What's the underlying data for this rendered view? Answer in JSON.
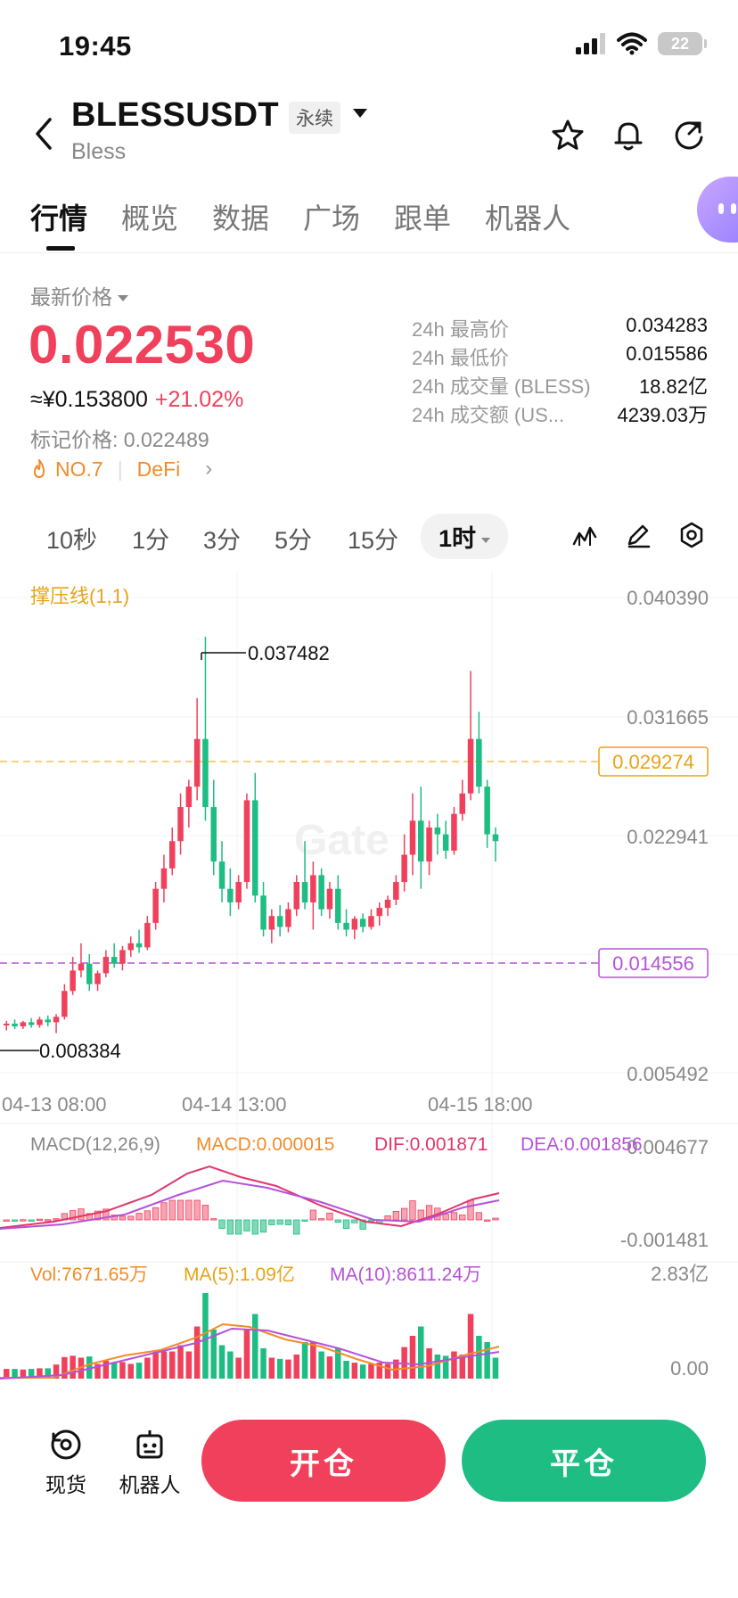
{
  "status": {
    "time": "19:45",
    "battery": "22"
  },
  "header": {
    "symbol": "BLESSUSDT",
    "contract_tag": "永续",
    "name": "Bless"
  },
  "tabs": [
    "行情",
    "概览",
    "数据",
    "广场",
    "跟单",
    "机器人"
  ],
  "price": {
    "label": "最新价格",
    "last": "0.022530",
    "cny": "≈¥0.153800",
    "change": "+21.02%",
    "mark": "标记价格: 0.022489",
    "rank": "NO.7",
    "category": "DeFi"
  },
  "stats": [
    {
      "k": "24h 最高价",
      "v": "0.034283"
    },
    {
      "k": "24h 最低价",
      "v": "0.015586"
    },
    {
      "k": "24h 成交量 (BLESS)",
      "v": "18.82亿"
    },
    {
      "k": "24h 成交额 (US...",
      "v": "4239.03万"
    }
  ],
  "intervals": [
    "10秒",
    "1分",
    "3分",
    "5分",
    "15分"
  ],
  "interval_active": "1时",
  "chart": {
    "indicator_label": "撑压线(1,1)",
    "y_labels": [
      "0.040390",
      "0.031665",
      "0.022941",
      "0.005492"
    ],
    "resistance": "0.029274",
    "support": "0.014556",
    "high_label": "0.037482",
    "low_label": "0.008384",
    "x_labels": [
      "04-13 08:00",
      "04-14 13:00",
      "04-15 18:00"
    ],
    "watermark": "Gate",
    "macd_params": "MACD(12,26,9)",
    "macd_value": "MACD:0.000015",
    "dif_value": "DIF:0.001871",
    "dea_value": "DEA:0.001856",
    "macd_top": "0.004677",
    "macd_bottom": "-0.001481",
    "vol_value": "Vol:7671.65万",
    "ma5_value": "MA(5):1.09亿",
    "ma10_value": "MA(10):8611.24万",
    "vol_top": "2.83亿",
    "vol_bottom": "0.00"
  },
  "chart_data": {
    "type": "candlestick",
    "x_labels": [
      "04-13 08:00",
      "04-14 13:00",
      "04-15 18:00"
    ],
    "ylim": [
      0.005492,
      0.04039
    ],
    "series": [
      {
        "o": 0.009,
        "h": 0.0093,
        "l": 0.0086,
        "c": 0.0091
      },
      {
        "o": 0.0091,
        "h": 0.0094,
        "l": 0.0087,
        "c": 0.0089
      },
      {
        "o": 0.0089,
        "h": 0.0093,
        "l": 0.0087,
        "c": 0.0092
      },
      {
        "o": 0.0092,
        "h": 0.0095,
        "l": 0.0088,
        "c": 0.009
      },
      {
        "o": 0.009,
        "h": 0.0096,
        "l": 0.0088,
        "c": 0.0094
      },
      {
        "o": 0.0094,
        "h": 0.0097,
        "l": 0.0089,
        "c": 0.0092
      },
      {
        "o": 0.0092,
        "h": 0.0098,
        "l": 0.0084,
        "c": 0.0096
      },
      {
        "o": 0.0096,
        "h": 0.012,
        "l": 0.0094,
        "c": 0.0115
      },
      {
        "o": 0.0115,
        "h": 0.014,
        "l": 0.0112,
        "c": 0.013
      },
      {
        "o": 0.013,
        "h": 0.015,
        "l": 0.0125,
        "c": 0.0135
      },
      {
        "o": 0.0135,
        "h": 0.0142,
        "l": 0.0115,
        "c": 0.012
      },
      {
        "o": 0.012,
        "h": 0.013,
        "l": 0.0115,
        "c": 0.0128
      },
      {
        "o": 0.0128,
        "h": 0.0145,
        "l": 0.0125,
        "c": 0.014
      },
      {
        "o": 0.014,
        "h": 0.015,
        "l": 0.0132,
        "c": 0.0135
      },
      {
        "o": 0.0135,
        "h": 0.0148,
        "l": 0.013,
        "c": 0.0145
      },
      {
        "o": 0.0145,
        "h": 0.0155,
        "l": 0.014,
        "c": 0.015
      },
      {
        "o": 0.015,
        "h": 0.016,
        "l": 0.0143,
        "c": 0.0147
      },
      {
        "o": 0.0147,
        "h": 0.017,
        "l": 0.0145,
        "c": 0.0165
      },
      {
        "o": 0.0165,
        "h": 0.0195,
        "l": 0.016,
        "c": 0.019
      },
      {
        "o": 0.019,
        "h": 0.0215,
        "l": 0.018,
        "c": 0.0205
      },
      {
        "o": 0.0205,
        "h": 0.0235,
        "l": 0.02,
        "c": 0.0225
      },
      {
        "o": 0.0225,
        "h": 0.026,
        "l": 0.0215,
        "c": 0.025
      },
      {
        "o": 0.025,
        "h": 0.027,
        "l": 0.0235,
        "c": 0.0265
      },
      {
        "o": 0.0265,
        "h": 0.033,
        "l": 0.0255,
        "c": 0.03
      },
      {
        "o": 0.03,
        "h": 0.0375,
        "l": 0.024,
        "c": 0.025
      },
      {
        "o": 0.025,
        "h": 0.027,
        "l": 0.02,
        "c": 0.021
      },
      {
        "o": 0.021,
        "h": 0.0225,
        "l": 0.018,
        "c": 0.019
      },
      {
        "o": 0.019,
        "h": 0.0205,
        "l": 0.017,
        "c": 0.018
      },
      {
        "o": 0.018,
        "h": 0.02,
        "l": 0.0175,
        "c": 0.0195
      },
      {
        "o": 0.0195,
        "h": 0.026,
        "l": 0.019,
        "c": 0.0255
      },
      {
        "o": 0.0255,
        "h": 0.0275,
        "l": 0.018,
        "c": 0.0185
      },
      {
        "o": 0.0185,
        "h": 0.0195,
        "l": 0.0155,
        "c": 0.016
      },
      {
        "o": 0.016,
        "h": 0.0175,
        "l": 0.015,
        "c": 0.017
      },
      {
        "o": 0.017,
        "h": 0.0178,
        "l": 0.0155,
        "c": 0.0162
      },
      {
        "o": 0.0162,
        "h": 0.018,
        "l": 0.0158,
        "c": 0.0175
      },
      {
        "o": 0.0175,
        "h": 0.02,
        "l": 0.017,
        "c": 0.0195
      },
      {
        "o": 0.0195,
        "h": 0.0225,
        "l": 0.0175,
        "c": 0.018
      },
      {
        "o": 0.018,
        "h": 0.021,
        "l": 0.016,
        "c": 0.02
      },
      {
        "o": 0.02,
        "h": 0.0205,
        "l": 0.017,
        "c": 0.0175
      },
      {
        "o": 0.0175,
        "h": 0.0195,
        "l": 0.0168,
        "c": 0.019
      },
      {
        "o": 0.019,
        "h": 0.02,
        "l": 0.016,
        "c": 0.0165
      },
      {
        "o": 0.0165,
        "h": 0.0175,
        "l": 0.0155,
        "c": 0.016
      },
      {
        "o": 0.016,
        "h": 0.017,
        "l": 0.0153,
        "c": 0.0168
      },
      {
        "o": 0.0168,
        "h": 0.0172,
        "l": 0.0158,
        "c": 0.0162
      },
      {
        "o": 0.0162,
        "h": 0.0175,
        "l": 0.016,
        "c": 0.017
      },
      {
        "o": 0.017,
        "h": 0.018,
        "l": 0.0163,
        "c": 0.0176
      },
      {
        "o": 0.0176,
        "h": 0.0185,
        "l": 0.017,
        "c": 0.0182
      },
      {
        "o": 0.0182,
        "h": 0.02,
        "l": 0.0178,
        "c": 0.0195
      },
      {
        "o": 0.0195,
        "h": 0.023,
        "l": 0.0188,
        "c": 0.0215
      },
      {
        "o": 0.0215,
        "h": 0.026,
        "l": 0.02,
        "c": 0.024
      },
      {
        "o": 0.024,
        "h": 0.0265,
        "l": 0.019,
        "c": 0.021
      },
      {
        "o": 0.021,
        "h": 0.024,
        "l": 0.02,
        "c": 0.0235
      },
      {
        "o": 0.0235,
        "h": 0.0245,
        "l": 0.0215,
        "c": 0.023
      },
      {
        "o": 0.023,
        "h": 0.024,
        "l": 0.0212,
        "c": 0.0218
      },
      {
        "o": 0.0218,
        "h": 0.025,
        "l": 0.0215,
        "c": 0.0245
      },
      {
        "o": 0.0245,
        "h": 0.027,
        "l": 0.024,
        "c": 0.026
      },
      {
        "o": 0.026,
        "h": 0.035,
        "l": 0.0255,
        "c": 0.03
      },
      {
        "o": 0.03,
        "h": 0.032,
        "l": 0.026,
        "c": 0.0265
      },
      {
        "o": 0.0265,
        "h": 0.027,
        "l": 0.022,
        "c": 0.023
      },
      {
        "o": 0.023,
        "h": 0.0235,
        "l": 0.021,
        "c": 0.0225
      }
    ],
    "support_level": 0.014556,
    "resistance_level": 0.029274
  },
  "actions": {
    "spot": "现货",
    "bot": "机器人",
    "open": "开仓",
    "close": "平仓"
  }
}
